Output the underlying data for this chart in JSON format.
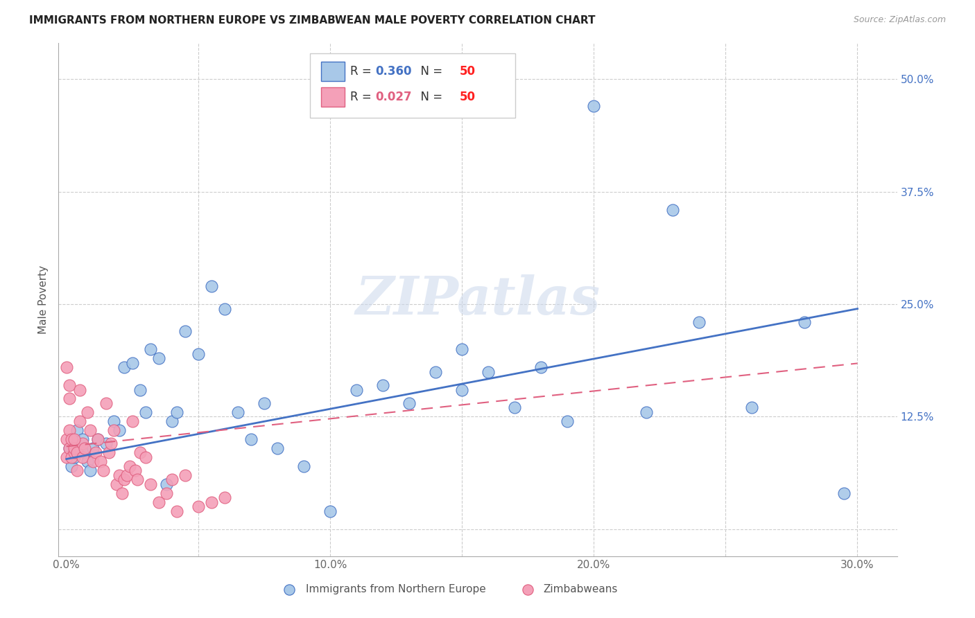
{
  "title": "IMMIGRANTS FROM NORTHERN EUROPE VS ZIMBABWEAN MALE POVERTY CORRELATION CHART",
  "source": "Source: ZipAtlas.com",
  "ylabel": "Male Poverty",
  "x_ticks": [
    0.0,
    0.05,
    0.1,
    0.15,
    0.2,
    0.25,
    0.3
  ],
  "x_tick_labels": [
    "0.0%",
    "",
    "10.0%",
    "",
    "20.0%",
    "",
    "30.0%"
  ],
  "y_ticks": [
    0.0,
    0.125,
    0.25,
    0.375,
    0.5
  ],
  "y_tick_labels": [
    "",
    "12.5%",
    "25.0%",
    "37.5%",
    "50.0%"
  ],
  "xlim": [
    -0.003,
    0.315
  ],
  "ylim": [
    -0.03,
    0.54
  ],
  "blue_R": "0.360",
  "blue_N": "50",
  "pink_R": "0.027",
  "pink_N": "50",
  "blue_color": "#A8C8E8",
  "pink_color": "#F4A0B8",
  "blue_line_color": "#4472C4",
  "pink_line_color": "#E06080",
  "watermark": "ZIPatlas",
  "blue_scatter_x": [
    0.001,
    0.002,
    0.003,
    0.004,
    0.005,
    0.006,
    0.007,
    0.008,
    0.009,
    0.01,
    0.012,
    0.015,
    0.018,
    0.02,
    0.022,
    0.025,
    0.028,
    0.03,
    0.032,
    0.035,
    0.038,
    0.04,
    0.042,
    0.045,
    0.05,
    0.055,
    0.06,
    0.065,
    0.07,
    0.075,
    0.08,
    0.09,
    0.1,
    0.11,
    0.12,
    0.13,
    0.14,
    0.15,
    0.16,
    0.17,
    0.18,
    0.19,
    0.2,
    0.22,
    0.23,
    0.24,
    0.26,
    0.28,
    0.295,
    0.15
  ],
  "blue_scatter_y": [
    0.09,
    0.07,
    0.08,
    0.11,
    0.09,
    0.1,
    0.085,
    0.075,
    0.065,
    0.09,
    0.1,
    0.095,
    0.12,
    0.11,
    0.18,
    0.185,
    0.155,
    0.13,
    0.2,
    0.19,
    0.05,
    0.12,
    0.13,
    0.22,
    0.195,
    0.27,
    0.245,
    0.13,
    0.1,
    0.14,
    0.09,
    0.07,
    0.02,
    0.155,
    0.16,
    0.14,
    0.175,
    0.2,
    0.175,
    0.135,
    0.18,
    0.12,
    0.47,
    0.13,
    0.355,
    0.23,
    0.135,
    0.23,
    0.04,
    0.155
  ],
  "pink_scatter_x": [
    0.0,
    0.0,
    0.0,
    0.001,
    0.001,
    0.001,
    0.002,
    0.002,
    0.003,
    0.003,
    0.004,
    0.004,
    0.005,
    0.005,
    0.006,
    0.006,
    0.007,
    0.008,
    0.009,
    0.01,
    0.011,
    0.012,
    0.013,
    0.014,
    0.015,
    0.016,
    0.017,
    0.018,
    0.019,
    0.02,
    0.021,
    0.022,
    0.023,
    0.024,
    0.025,
    0.026,
    0.027,
    0.028,
    0.03,
    0.032,
    0.035,
    0.038,
    0.04,
    0.042,
    0.045,
    0.05,
    0.055,
    0.06,
    0.003,
    0.001
  ],
  "pink_scatter_y": [
    0.18,
    0.1,
    0.08,
    0.11,
    0.09,
    0.16,
    0.1,
    0.08,
    0.085,
    0.09,
    0.085,
    0.065,
    0.155,
    0.12,
    0.095,
    0.08,
    0.09,
    0.13,
    0.11,
    0.075,
    0.085,
    0.1,
    0.075,
    0.065,
    0.14,
    0.085,
    0.095,
    0.11,
    0.05,
    0.06,
    0.04,
    0.055,
    0.06,
    0.07,
    0.12,
    0.065,
    0.055,
    0.085,
    0.08,
    0.05,
    0.03,
    0.04,
    0.055,
    0.02,
    0.06,
    0.025,
    0.03,
    0.035,
    0.1,
    0.145
  ],
  "blue_line_x": [
    0.0,
    0.3
  ],
  "blue_line_y": [
    0.078,
    0.245
  ],
  "pink_line_x": [
    0.0,
    0.065
  ],
  "pink_line_y": [
    0.092,
    0.112
  ]
}
